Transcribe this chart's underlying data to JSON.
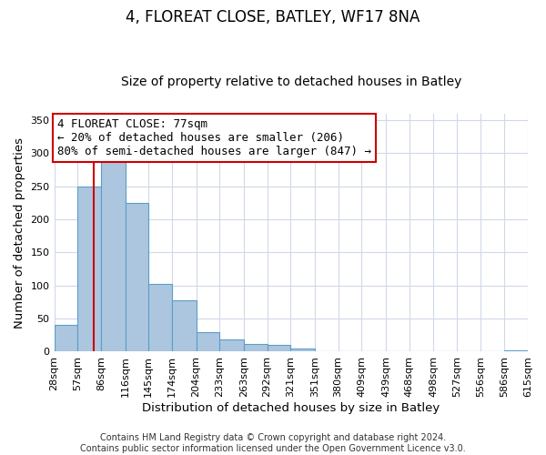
{
  "title": "4, FLOREAT CLOSE, BATLEY, WF17 8NA",
  "subtitle": "Size of property relative to detached houses in Batley",
  "xlabel": "Distribution of detached houses by size in Batley",
  "ylabel": "Number of detached properties",
  "footer_lines": [
    "Contains HM Land Registry data © Crown copyright and database right 2024.",
    "Contains public sector information licensed under the Open Government Licence v3.0."
  ],
  "bar_edges": [
    28,
    57,
    86,
    116,
    145,
    174,
    204,
    233,
    263,
    292,
    321,
    351,
    380,
    409,
    439,
    468,
    498,
    527,
    556,
    586,
    615
  ],
  "bar_heights": [
    40,
    250,
    290,
    225,
    103,
    77,
    30,
    19,
    12,
    10,
    5,
    0,
    0,
    1,
    0,
    0,
    0,
    0,
    0,
    2
  ],
  "bar_color": "#adc6e0",
  "bar_edge_color": "#5a9ec9",
  "vline_x": 77,
  "vline_color": "#cc0000",
  "annotation_box_text": "4 FLOREAT CLOSE: 77sqm\n← 20% of detached houses are smaller (206)\n80% of semi-detached houses are larger (847) →",
  "box_edge_color": "#cc0000",
  "ylim": [
    0,
    360
  ],
  "yticks": [
    0,
    50,
    100,
    150,
    200,
    250,
    300,
    350
  ],
  "background_color": "#ffffff",
  "grid_color": "#d0d8e8",
  "title_fontsize": 12,
  "subtitle_fontsize": 10,
  "axis_label_fontsize": 9.5,
  "tick_label_fontsize": 8,
  "annotation_fontsize": 9,
  "footer_fontsize": 7
}
